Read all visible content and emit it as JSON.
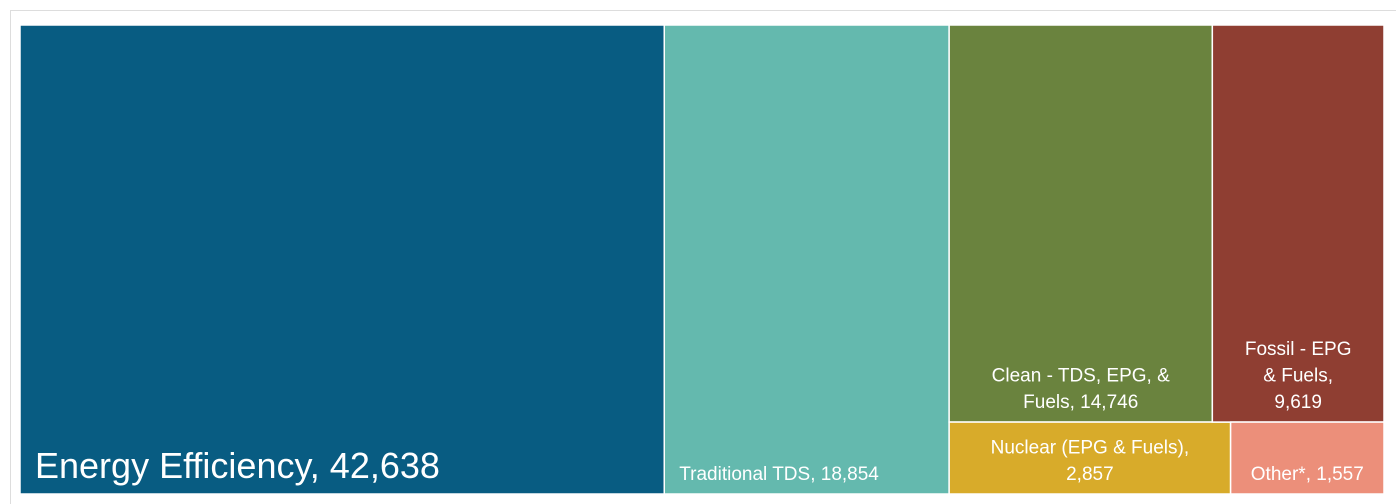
{
  "chart_data": {
    "type": "treemap",
    "categories": [
      "Energy Efficiency",
      "Traditional TDS",
      "Clean - TDS, EPG, &",
      "Nuclear (EPG & Fuels),",
      "Fossil - EPG",
      "Other*"
    ],
    "labels": [
      [
        "Energy Efficiency, 42,638"
      ],
      [
        "Traditional TDS, 18,854"
      ],
      [
        "Clean - TDS, EPG, &",
        "Fuels, 14,746"
      ],
      [
        "Nuclear (EPG & Fuels),",
        "2,857"
      ],
      [
        "Fossil - EPG",
        "& Fuels,",
        "9,619"
      ],
      [
        "Other*, 1,557"
      ]
    ],
    "values": [
      42638,
      18854,
      14746,
      2857,
      9619,
      1557
    ],
    "colors": [
      "#085c82",
      "#64b9ae",
      "#6a833e",
      "#d8ab2a",
      "#8f3e32",
      "#ec8f7a"
    ]
  }
}
